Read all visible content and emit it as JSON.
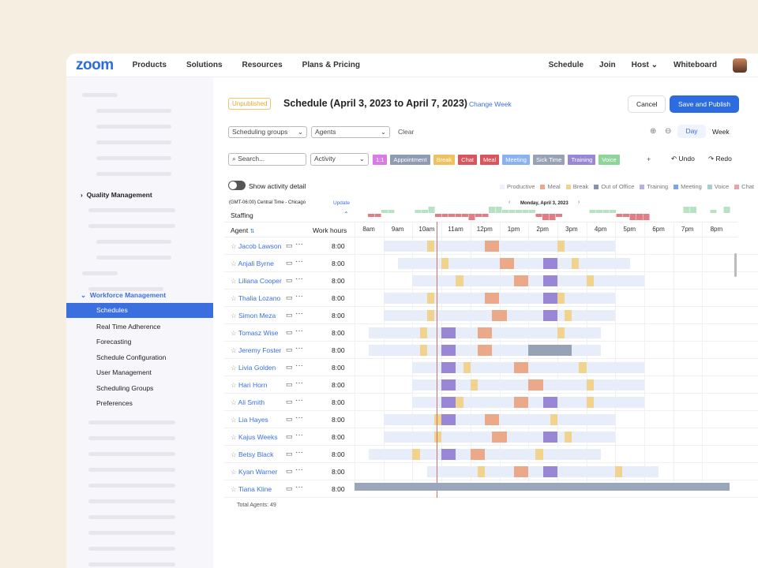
{
  "nav": {
    "logo": "zoom",
    "items": [
      "Products",
      "Solutions",
      "Resources",
      "Plans & Pricing"
    ],
    "right": [
      "Schedule",
      "Join",
      "Host ⌄",
      "Whiteboard"
    ]
  },
  "sidebar": {
    "quality": "Quality Management",
    "workforce": "Workforce Management",
    "items": [
      "Schedules",
      "Real Time Adherence",
      "Forecasting",
      "Schedule Configuration",
      "User Management",
      "Scheduling Groups",
      "Preferences"
    ],
    "active": "Schedules"
  },
  "header": {
    "badge": "Unpublished",
    "title": "Schedule (April 3, 2023 to April 7, 2023)",
    "change_week": "Change Week",
    "cancel": "Cancel",
    "save": "Save and Publish"
  },
  "filters": {
    "groups": "Scheduling groups",
    "agents": "Agents",
    "clear": "Clear",
    "day": "Day",
    "week": "Week",
    "search_placeholder": "Search...",
    "activity": "Activity",
    "undo": "Undo",
    "redo": "Redo",
    "plus": "+"
  },
  "chips": [
    {
      "label": "1:1",
      "color": "#d77ce6"
    },
    {
      "label": "Appointment",
      "color": "#8f9bb3"
    },
    {
      "label": "Break",
      "color": "#f0c25e"
    },
    {
      "label": "Chat",
      "color": "#d9555e"
    },
    {
      "label": "Meal",
      "color": "#d9555e"
    },
    {
      "label": "Meeting",
      "color": "#8ab2f0"
    },
    {
      "label": "Sick Time",
      "color": "#98a2b5"
    },
    {
      "label": "Training",
      "color": "#9a86d6"
    },
    {
      "label": "Voice",
      "color": "#8fd49a"
    }
  ],
  "show_detail": "Show activity detail",
  "legend": [
    {
      "label": "Productive",
      "color": "#eef1fa"
    },
    {
      "label": "Meal",
      "color": "#eba98a"
    },
    {
      "label": "Break",
      "color": "#f1d38e"
    },
    {
      "label": "Out of Office",
      "color": "#8a92a6"
    },
    {
      "label": "Training",
      "color": "#b9b0e0"
    },
    {
      "label": "Meeting",
      "color": "#7ea3ea"
    },
    {
      "label": "Voice",
      "color": "#a7cfd0"
    },
    {
      "label": "Chat",
      "color": "#e7a3a8"
    }
  ],
  "timezone": "(GMT-06:00) Central Time - Chicago",
  "update": "Update",
  "date": "Monday, April 3, 2023",
  "staffing": "Staffing",
  "columns": {
    "agent": "Agent",
    "work_hours": "Work hours"
  },
  "hours": [
    "8am",
    "9am",
    "10am",
    "11am",
    "12pm",
    "1pm",
    "2pm",
    "3pm",
    "4pm",
    "5pm",
    "6pm",
    "7pm",
    "8pm"
  ],
  "current_time": 10.83,
  "activity_colors": {
    "break": "#f1d38e",
    "meal": "#eba98a",
    "training": "#9a86d6",
    "sick": "#98a2b5"
  },
  "staffing_values": [
    0,
    0,
    -1,
    -1,
    1,
    1,
    0,
    0,
    0,
    1,
    1,
    2,
    -1,
    -1,
    -1,
    -1,
    -1,
    -2,
    -1,
    -1,
    2,
    2,
    1,
    1,
    1,
    1,
    1,
    -1,
    -2,
    -2,
    -1,
    0,
    0,
    0,
    0,
    1,
    1,
    1,
    1,
    -1,
    -1,
    -2,
    -2,
    -2,
    0,
    0,
    0,
    0,
    0,
    2,
    2,
    0,
    0,
    1,
    0,
    2
  ],
  "agents": [
    {
      "name": "Jacob Lawson",
      "hours": "8:00",
      "shift": [
        9,
        17
      ],
      "blocks": [
        [
          "break",
          10.5,
          10.75
        ],
        [
          "meal",
          12.5,
          13
        ],
        [
          "break",
          15,
          15.25
        ]
      ]
    },
    {
      "name": "Anjali Byrne",
      "hours": "8:00",
      "shift": [
        9.5,
        17.5
      ],
      "blocks": [
        [
          "break",
          11,
          11.25
        ],
        [
          "meal",
          13,
          13.5
        ],
        [
          "training",
          14.5,
          15
        ],
        [
          "break",
          15.5,
          15.75
        ]
      ]
    },
    {
      "name": "Liliana Cooper",
      "hours": "8:00",
      "shift": [
        10,
        18
      ],
      "blocks": [
        [
          "break",
          11.5,
          11.75
        ],
        [
          "meal",
          13.5,
          14
        ],
        [
          "training",
          14.5,
          15
        ],
        [
          "break",
          16,
          16.25
        ]
      ]
    },
    {
      "name": "Thalia Lozano",
      "hours": "8:00",
      "shift": [
        9,
        17
      ],
      "blocks": [
        [
          "break",
          10.5,
          10.75
        ],
        [
          "meal",
          12.5,
          13
        ],
        [
          "training",
          14.5,
          15
        ],
        [
          "break",
          15,
          15.25
        ]
      ]
    },
    {
      "name": "Simon Meza",
      "hours": "8:00",
      "shift": [
        9,
        17
      ],
      "blocks": [
        [
          "break",
          10.5,
          10.75
        ],
        [
          "meal",
          12.75,
          13.25
        ],
        [
          "training",
          14.5,
          15
        ],
        [
          "break",
          15.25,
          15.5
        ]
      ]
    },
    {
      "name": "Tomasz Wise",
      "hours": "8:00",
      "shift": [
        8.5,
        16.5
      ],
      "blocks": [
        [
          "break",
          10.25,
          10.5
        ],
        [
          "training",
          11,
          11.5
        ],
        [
          "meal",
          12.25,
          12.75
        ],
        [
          "break",
          15,
          15.25
        ]
      ]
    },
    {
      "name": "Jeremy Foster",
      "hours": "8:00",
      "shift": [
        8.5,
        16.5
      ],
      "blocks": [
        [
          "break",
          10.25,
          10.5
        ],
        [
          "training",
          11,
          11.5
        ],
        [
          "meal",
          12.25,
          12.75
        ],
        [
          "sick",
          14,
          15.5
        ]
      ]
    },
    {
      "name": "Livia Golden",
      "hours": "8:00",
      "shift": [
        10,
        18
      ],
      "blocks": [
        [
          "training",
          11,
          11.5
        ],
        [
          "break",
          11.75,
          12
        ],
        [
          "meal",
          13.5,
          14
        ],
        [
          "break",
          15.75,
          16
        ]
      ]
    },
    {
      "name": "Hari Horn",
      "hours": "8:00",
      "shift": [
        10,
        18
      ],
      "blocks": [
        [
          "training",
          11,
          11.5
        ],
        [
          "break",
          12,
          12.25
        ],
        [
          "meal",
          14,
          14.5
        ],
        [
          "break",
          16,
          16.25
        ]
      ]
    },
    {
      "name": "Ali Smith",
      "hours": "8:00",
      "shift": [
        10,
        18
      ],
      "blocks": [
        [
          "training",
          11,
          11.5
        ],
        [
          "break",
          11.5,
          11.75
        ],
        [
          "meal",
          13.5,
          14
        ],
        [
          "training",
          14.5,
          15
        ],
        [
          "break",
          16,
          16.25
        ]
      ]
    },
    {
      "name": "Lia Hayes",
      "hours": "8:00",
      "shift": [
        9,
        17
      ],
      "blocks": [
        [
          "break",
          10.75,
          11
        ],
        [
          "training",
          11,
          11.5
        ],
        [
          "meal",
          12.5,
          13
        ],
        [
          "break",
          14.75,
          15
        ]
      ]
    },
    {
      "name": "Kajus Weeks",
      "hours": "8:00",
      "shift": [
        9,
        17
      ],
      "blocks": [
        [
          "break",
          10.75,
          11
        ],
        [
          "meal",
          12.75,
          13.25
        ],
        [
          "training",
          14.5,
          15
        ],
        [
          "break",
          15.25,
          15.5
        ]
      ]
    },
    {
      "name": "Betsy Black",
      "hours": "8:00",
      "shift": [
        8.5,
        16.5
      ],
      "blocks": [
        [
          "break",
          10,
          10.25
        ],
        [
          "training",
          11,
          11.5
        ],
        [
          "meal",
          12,
          12.5
        ],
        [
          "break",
          14.25,
          14.5
        ]
      ]
    },
    {
      "name": "Kyan Warner",
      "hours": "8:00",
      "shift": [
        10.5,
        18.5
      ],
      "blocks": [
        [
          "break",
          12.25,
          12.5
        ],
        [
          "meal",
          13.5,
          14
        ],
        [
          "training",
          14.5,
          15
        ],
        [
          "break",
          17,
          17.25
        ]
      ]
    },
    {
      "name": "Tiana Kline",
      "hours": "8:00",
      "shift": null,
      "blocks": []
    }
  ],
  "total": "Total Agents: 49"
}
